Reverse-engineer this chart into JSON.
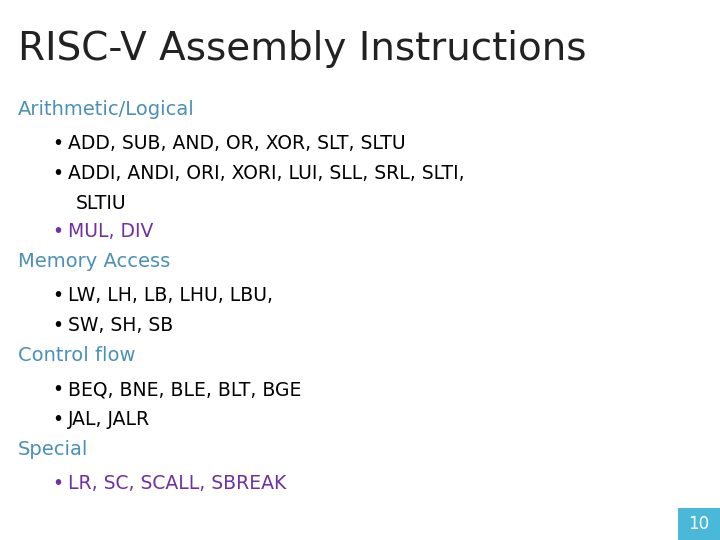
{
  "title": "RISC-V Assembly Instructions",
  "title_color": "#222222",
  "title_fontsize": 28,
  "background_color": "#ffffff",
  "sections": [
    {
      "label": "Arithmetic/Logical",
      "label_color": "#4a90b8",
      "bullets": [
        {
          "text": "ADD, SUB, AND, OR, XOR, SLT, SLTU",
          "color": "#000000",
          "extra": null
        },
        {
          "text": "ADDI, ANDI, ORI, XORI, LUI, SLL, SRL, SLTI,",
          "color": "#000000",
          "extra": "SLTIU"
        },
        {
          "text": "MUL, DIV",
          "color": "#7030A0",
          "extra": null
        }
      ]
    },
    {
      "label": "Memory Access",
      "label_color": "#4a90b8",
      "bullets": [
        {
          "text": "LW, LH, LB, LHU, LBU,",
          "color": "#000000",
          "extra": null
        },
        {
          "text": "SW, SH, SB",
          "color": "#000000",
          "extra": null
        }
      ]
    },
    {
      "label": "Control flow",
      "label_color": "#4a90b8",
      "bullets": [
        {
          "text": "BEQ, BNE, BLE, BLT, BGE",
          "color": "#000000",
          "extra": null
        },
        {
          "text": "JAL, JALR",
          "color": "#000000",
          "extra": null
        }
      ]
    },
    {
      "label": "Special",
      "label_color": "#4a90b8",
      "bullets": [
        {
          "text": "LR, SC, SCALL, SBREAK",
          "color": "#7030A0",
          "extra": null
        }
      ]
    }
  ],
  "page_number": "10",
  "page_box_color": "#4ab8d8",
  "page_text_color": "#ffffff",
  "section_fontsize": 14,
  "bullet_fontsize": 13.5,
  "extra_fontsize": 13.5,
  "font_family": "DejaVu Sans"
}
